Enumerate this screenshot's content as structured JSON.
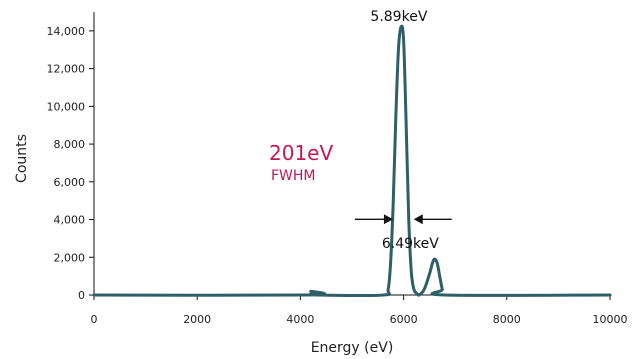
{
  "chart_data": {
    "type": "line",
    "title": "",
    "xlabel": "Energy (eV)",
    "ylabel": "Counts",
    "xlim": [
      0,
      10000
    ],
    "ylim": [
      0,
      15000
    ],
    "x_ticks": [
      0,
      2000,
      4000,
      6000,
      8000,
      10000
    ],
    "x_tick_labels": [
      "0",
      "2000",
      "4000",
      "6000",
      "8000",
      "10000"
    ],
    "y_ticks": [
      0,
      2000,
      4000,
      6000,
      8000,
      10000,
      12000,
      14000
    ],
    "y_tick_labels": [
      "0",
      "2,000",
      "4,000",
      "6,000",
      "8,000",
      "10,000",
      "12,000",
      "14,000"
    ],
    "grid": false,
    "series": [
      {
        "name": "",
        "color": "#2e5e66",
        "x": [
          0,
          4150,
          4200,
          4250,
          4300,
          5600,
          5700,
          5750,
          5800,
          5850,
          5900,
          5950,
          6000,
          6050,
          6100,
          6150,
          6200,
          6250,
          6300,
          6400,
          6500,
          6560,
          6600,
          6650,
          6700,
          6750,
          6800,
          10000
        ],
        "y": [
          0,
          0,
          200,
          100,
          0,
          0,
          300,
          1800,
          5000,
          9500,
          13000,
          14200,
          13500,
          9000,
          4000,
          1200,
          300,
          100,
          0,
          300,
          1100,
          1700,
          1900,
          1700,
          1000,
          300,
          0,
          0
        ]
      }
    ],
    "annotations": [
      {
        "text": "5.89keV",
        "x": 5890,
        "y": 14200
      },
      {
        "text": "6.49keV",
        "x": 6490,
        "y": 1900
      }
    ],
    "fwhm": {
      "value_text": "201eV",
      "label_text": "FWHM",
      "left_x": 5890,
      "right_x": 6100,
      "y": 3800,
      "arrow_color": "#111111"
    }
  }
}
